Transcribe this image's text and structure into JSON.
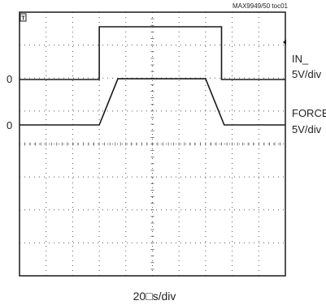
{
  "chart_data": {
    "type": "line",
    "figure_id": "MAX9949/50 toc01",
    "xlabel": "20□s/div",
    "grid": true,
    "x_divisions": 10,
    "y_divisions": 8,
    "trigger_marker": "T",
    "series": [
      {
        "name": "IN_",
        "scale_label": "5V/div",
        "zero_label": "0",
        "x": [
          0,
          3.0,
          3.0,
          7.6,
          7.6,
          10
        ],
        "y": [
          0,
          0,
          1.6,
          1.6,
          0,
          0
        ]
      },
      {
        "name": "FORCE",
        "scale_label": "5V/div",
        "zero_label": "0",
        "x": [
          0,
          3.0,
          3.7,
          7.0,
          7.7,
          10
        ],
        "y": [
          0,
          0,
          1.4,
          1.4,
          0,
          0
        ]
      }
    ]
  }
}
